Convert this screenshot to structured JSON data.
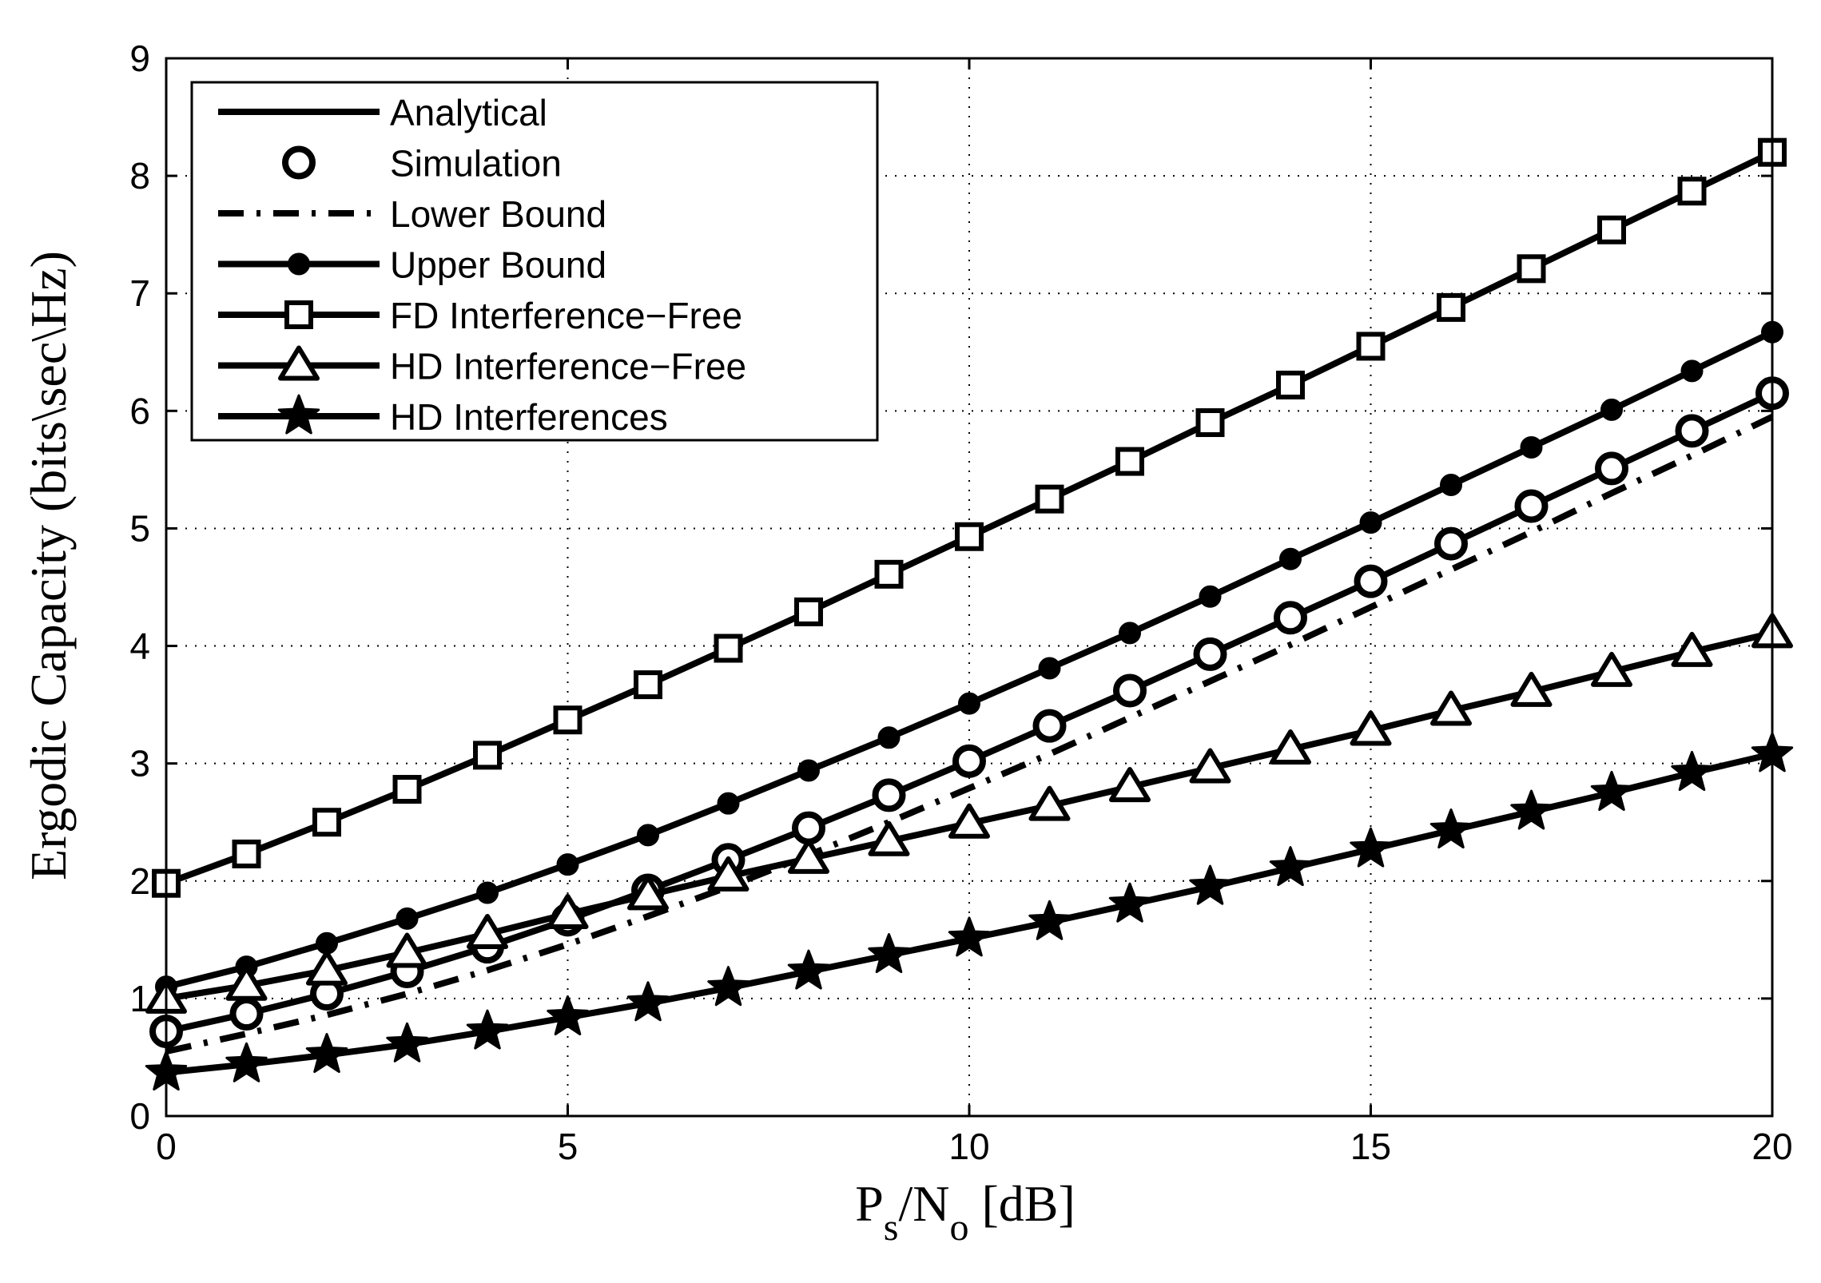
{
  "chart_data": {
    "type": "line",
    "title": "",
    "xlabel": {
      "main": "P",
      "sub1": "s",
      "mid": "/N",
      "sub2": "o",
      "tail": " [dB]"
    },
    "ylabel": "Ergodic Capacity (bits\\sec\\Hz)",
    "xlim": [
      0,
      20
    ],
    "ylim": [
      0,
      9
    ],
    "xticks": [
      0,
      5,
      10,
      15,
      20
    ],
    "yticks": [
      0,
      1,
      2,
      3,
      4,
      5,
      6,
      7,
      8,
      9
    ],
    "grid": true,
    "legend_position": "top-left",
    "x": [
      0,
      1,
      2,
      3,
      4,
      5,
      6,
      7,
      8,
      9,
      10,
      11,
      12,
      13,
      14,
      15,
      16,
      17,
      18,
      19,
      20
    ],
    "series": [
      {
        "name": "FD Interference-Free",
        "style": "solid",
        "marker": "square",
        "values": [
          1.98,
          2.23,
          2.5,
          2.78,
          3.07,
          3.37,
          3.67,
          3.98,
          4.29,
          4.61,
          4.93,
          5.25,
          5.57,
          5.9,
          6.22,
          6.55,
          6.88,
          7.21,
          7.54,
          7.87,
          8.2
        ]
      },
      {
        "name": "Upper Bound",
        "style": "solid",
        "marker": "dot",
        "values": [
          1.1,
          1.27,
          1.47,
          1.68,
          1.9,
          2.14,
          2.39,
          2.66,
          2.94,
          3.22,
          3.51,
          3.81,
          4.11,
          4.42,
          4.74,
          5.05,
          5.37,
          5.69,
          6.01,
          6.34,
          6.67
        ]
      },
      {
        "name": "Analytical",
        "style": "solid",
        "marker": "none",
        "values": [
          0.72,
          0.87,
          1.04,
          1.23,
          1.44,
          1.67,
          1.92,
          2.18,
          2.45,
          2.73,
          3.02,
          3.32,
          3.62,
          3.93,
          4.24,
          4.55,
          4.87,
          5.19,
          5.51,
          5.83,
          6.15
        ]
      },
      {
        "name": "Simulation",
        "style": "none",
        "marker": "circle",
        "values": [
          0.72,
          0.87,
          1.04,
          1.23,
          1.44,
          1.67,
          1.92,
          2.18,
          2.45,
          2.73,
          3.02,
          3.32,
          3.62,
          3.93,
          4.24,
          4.55,
          4.87,
          5.19,
          5.51,
          5.83,
          6.15
        ]
      },
      {
        "name": "Lower Bound",
        "style": "dashdot",
        "marker": "none",
        "values": [
          0.55,
          0.7,
          0.86,
          1.04,
          1.24,
          1.46,
          1.7,
          1.95,
          2.22,
          2.5,
          2.79,
          3.08,
          3.39,
          3.7,
          4.01,
          4.33,
          4.65,
          4.97,
          5.3,
          5.62,
          5.95
        ]
      },
      {
        "name": "HD Interference-Free",
        "style": "solid",
        "marker": "triangle",
        "values": [
          1.0,
          1.11,
          1.24,
          1.39,
          1.55,
          1.72,
          1.88,
          2.04,
          2.19,
          2.34,
          2.49,
          2.64,
          2.8,
          2.96,
          3.12,
          3.28,
          3.45,
          3.61,
          3.78,
          3.95,
          4.11
        ]
      },
      {
        "name": "HD Interferences",
        "style": "solid",
        "marker": "star",
        "values": [
          0.37,
          0.44,
          0.52,
          0.61,
          0.72,
          0.84,
          0.96,
          1.09,
          1.23,
          1.37,
          1.51,
          1.65,
          1.8,
          1.95,
          2.11,
          2.27,
          2.43,
          2.59,
          2.75,
          2.92,
          3.08
        ]
      }
    ],
    "legend": [
      {
        "label": "Analytical",
        "line": "solid",
        "marker": "none"
      },
      {
        "label": "Simulation",
        "line": "none",
        "marker": "circle"
      },
      {
        "label": "Lower Bound",
        "line": "dashdot",
        "marker": "none"
      },
      {
        "label": "Upper Bound",
        "line": "solid",
        "marker": "dot"
      },
      {
        "label": "FD Interference−Free",
        "line": "solid",
        "marker": "square"
      },
      {
        "label": "HD Interference−Free",
        "line": "solid",
        "marker": "triangle"
      },
      {
        "label": "HD Interferences",
        "line": "solid",
        "marker": "star"
      }
    ],
    "colors": {
      "line": "#000000",
      "grid": "#000000",
      "background": "#ffffff"
    }
  }
}
